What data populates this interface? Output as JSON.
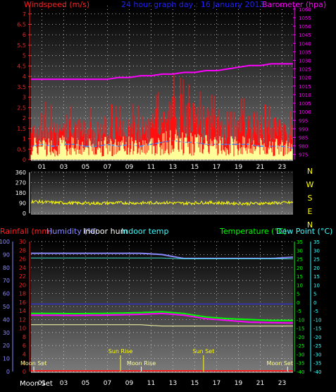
{
  "panel_top": {
    "left_label": "Windspeed (m/s)",
    "center_label": "24 hour graph day : 16 January 2013",
    "right_label": "Barometer (hpa)",
    "colors": {
      "left": "#ff2020",
      "center": "#2020ff",
      "right": "#ff00ff",
      "avg": "#3a8aff",
      "gust_fill": "#ffff99"
    },
    "left_ticks": [
      "7",
      "6.5",
      "6",
      "5.5",
      "5",
      "4.5",
      "4",
      "3.5",
      "3",
      "2.5",
      "2",
      "1.5",
      "1",
      "0.5",
      "0"
    ],
    "right_ticks": [
      "1060",
      "1055",
      "1050",
      "1045",
      "1040",
      "1035",
      "1030",
      "1025",
      "1020",
      "1015",
      "1010",
      "1005",
      "1000",
      "995",
      "990",
      "985",
      "980",
      "975"
    ],
    "x_ticks": [
      "01",
      "03",
      "05",
      "07",
      "09",
      "11",
      "13",
      "15",
      "17",
      "19",
      "21",
      "23"
    ]
  },
  "panel_mid": {
    "left_ticks": [
      "360",
      "270",
      "180",
      "90",
      "0"
    ],
    "right_labels": [
      "N",
      "W",
      "S",
      "E",
      "N"
    ],
    "colors": {
      "line": "#ffff00",
      "right": "#ffff00"
    }
  },
  "panel_bot": {
    "labels": [
      {
        "text": "Rainfall (mm)",
        "color": "#ff2020"
      },
      {
        "text": "Humidity (%)",
        "color": "#8a8aff"
      },
      {
        "text": "Indoor hum",
        "color": "#ffffff"
      },
      {
        "text": "Indoor temp",
        "color": "#40ffff"
      }
    ],
    "right_label_temp": "Temperature (°C)",
    "right_label_dew": "Dew Point (°C)",
    "right_colors": {
      "temp": "#00ff00",
      "dew": "#40ffff"
    },
    "left_ticks_hum": [
      "100",
      "90",
      "80",
      "70",
      "60",
      "50",
      "40",
      "30",
      "20",
      "10",
      "0"
    ],
    "left_ticks_rain": [
      "30",
      "28",
      "26",
      "24",
      "22",
      "20",
      "18",
      "16",
      "14",
      "12",
      "10",
      "8",
      "6",
      "4",
      "2",
      "0"
    ],
    "right_ticks_temp": [
      "35",
      "30",
      "25",
      "20",
      "15",
      "10",
      "5",
      "0",
      "-5",
      "-10",
      "-15",
      "-20",
      "-25",
      "-30",
      "-35",
      "-40"
    ],
    "right_ticks_dew": [
      "35",
      "30",
      "25",
      "20",
      "15",
      "10",
      "5",
      "0",
      "-5",
      "-10",
      "-15",
      "-20",
      "-25",
      "-30",
      "-35",
      "-40"
    ],
    "x_ticks": [
      "01",
      "03",
      "05",
      "07",
      "09",
      "11",
      "13",
      "15",
      "17",
      "19",
      "21",
      "23"
    ],
    "events": [
      {
        "text": "Sun Rise",
        "color": "#ffff00",
        "hour": 8.2
      },
      {
        "text": "Sun Set",
        "color": "#ffff00",
        "hour": 15.8
      }
    ],
    "moon": [
      {
        "text": "Moon Set",
        "hour": -0.4
      },
      {
        "text": "Moon Rise",
        "hour": 10.1
      },
      {
        "text": "Moon Set",
        "hour": 23.5
      }
    ],
    "bottom_left_label": "Moon Set"
  },
  "chart_data": [
    {
      "type": "area",
      "title": "24 hour graph day : 16 January 2013",
      "xlabel": "",
      "ylabel": "Windspeed (m/s)",
      "ylim": [
        0,
        7
      ],
      "y2label": "Barometer (hpa)",
      "y2lim": [
        972,
        1062
      ],
      "x": [
        "00",
        "01",
        "02",
        "03",
        "04",
        "05",
        "06",
        "07",
        "08",
        "09",
        "10",
        "11",
        "12",
        "13",
        "14",
        "15",
        "16",
        "17",
        "18",
        "19",
        "20",
        "21",
        "22",
        "23",
        "24"
      ],
      "series": [
        {
          "values": [
            1.6,
            1.8,
            1.6,
            1.8,
            1.5,
            1.6,
            1.5,
            1.7,
            1.6,
            1.7,
            1.6,
            1.7,
            2.2,
            2.6,
            2.4,
            2.1,
            2.0,
            1.9,
            1.8,
            1.8,
            1.9,
            1.7,
            1.6,
            1.6,
            1.4
          ]
        },
        {
          "values": [
            0.7,
            0.8,
            0.7,
            0.8,
            0.8,
            0.7,
            0.7,
            0.8,
            0.7,
            0.8,
            0.7,
            0.8,
            0.9,
            1.0,
            0.9,
            0.9,
            0.8,
            0.8,
            0.8,
            0.8,
            0.8,
            0.7,
            0.7,
            0.7,
            0.6
          ]
        },
        {
          "values": [
            1019,
            1019,
            1019,
            1019,
            1019,
            1019,
            1019,
            1019,
            1020,
            1020,
            1021,
            1021,
            1022,
            1022,
            1023,
            1023,
            1024,
            1024,
            1025,
            1026,
            1027,
            1027,
            1028,
            1028,
            1028
          ]
        }
      ],
      "legend": "top"
    },
    {
      "type": "line",
      "ylabel": "",
      "ylim": [
        0,
        360
      ],
      "x": [
        "00",
        "02",
        "04",
        "06",
        "08",
        "10",
        "12",
        "14",
        "16",
        "18",
        "20",
        "22",
        "24"
      ],
      "series": [
        {
          "values": [
            105,
            95,
            90,
            88,
            92,
            90,
            95,
            88,
            95,
            90,
            85,
            90,
            95
          ]
        }
      ]
    },
    {
      "type": "line",
      "ylabel": "Humidity (%)",
      "ylim": [
        0,
        100
      ],
      "y2label": "Temperature (°C)",
      "y2lim": [
        -40,
        35
      ],
      "x": [
        "00",
        "02",
        "04",
        "06",
        "08",
        "10",
        "12",
        "14",
        "16",
        "18",
        "20",
        "22",
        "24"
      ],
      "series": [
        {
          "name": "Humidity (%)",
          "values": [
            91,
            91,
            91,
            91,
            91,
            91,
            90,
            87,
            87,
            87,
            87,
            87,
            88
          ]
        },
        {
          "name": "Indoor hum",
          "values": [
            36,
            36,
            36,
            36,
            36,
            36,
            35,
            35,
            35,
            35,
            35,
            35,
            35
          ]
        },
        {
          "name": "Indoor temp",
          "values": [
            25.5,
            25.5,
            25.5,
            25.5,
            25.5,
            25.5,
            25.5,
            25,
            25,
            25,
            25,
            25,
            25
          ]
        },
        {
          "name": "Temperature (°C)",
          "values": [
            -6.5,
            -6.5,
            -6.6,
            -6.5,
            -6.3,
            -6.0,
            -5.5,
            -6.5,
            -8.5,
            -9.5,
            -10,
            -10.5,
            -10.5
          ]
        },
        {
          "name": "Dew Point (°C)",
          "values": [
            -7.5,
            -7.5,
            -7.6,
            -7.5,
            -7.3,
            -7.0,
            -6.5,
            -7.5,
            -9.5,
            -10.5,
            -11.5,
            -11.8,
            -12
          ]
        },
        {
          "name": "Rainfall (mm)",
          "values": [
            0,
            0,
            0,
            0,
            0,
            0,
            0,
            0,
            0,
            0,
            0,
            0,
            0
          ]
        }
      ]
    }
  ]
}
